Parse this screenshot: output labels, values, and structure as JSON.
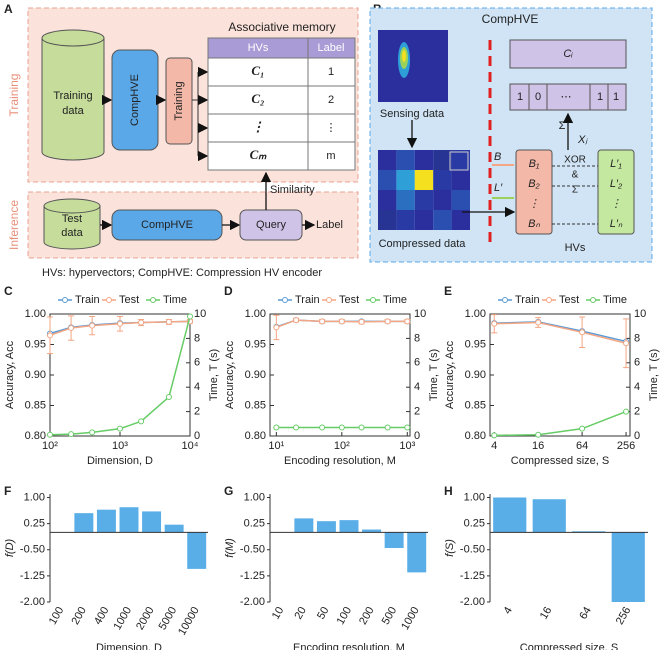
{
  "panel_a": {
    "letter": "A",
    "training_side": "Training",
    "inference_side": "Inference",
    "training_data": [
      "Training",
      "data"
    ],
    "encoder": "CompHVE",
    "trainer": "Training",
    "memory_title": "Associative memory",
    "memory_headers": [
      "HVs",
      "Label"
    ],
    "memory_rows": [
      [
        "C₁",
        "1"
      ],
      [
        "C₂",
        "2"
      ],
      [
        "⋮",
        "⋮"
      ],
      [
        "Cₘ",
        "m"
      ]
    ],
    "similarity": "Similarity",
    "test_data": [
      "Test",
      "data"
    ],
    "test_encoder": "CompHVE",
    "query": "Query",
    "output": "Label",
    "caption": "HVs: hypervectors; CompHVE: Compression HV encoder"
  },
  "panel_b": {
    "letter": "B",
    "title": "CompHVE",
    "sensing": "Sensing data",
    "compressed": "Compressed data",
    "b_label": "B",
    "l_label": "L′",
    "hvs": "HVs",
    "class_hv": "Cᵢ",
    "bits": [
      "1",
      "0",
      "⋯",
      "1",
      "1"
    ],
    "sum": "Σ",
    "x_label": "Xⱼ",
    "ops": [
      "XOR",
      "&",
      "Σ"
    ],
    "b_stack": [
      "B₁",
      "B₂",
      "⋮",
      "Bₙ"
    ],
    "l_stack": [
      "L′₁",
      "L′₂",
      "⋮",
      "L′ₙ"
    ]
  },
  "chart_data": [
    {
      "type": "line",
      "panel": "C",
      "xlabel": "Dimension, D",
      "ylabel": "Accuracy, Acc",
      "y2label": "Time, T (s)",
      "xscale": "log",
      "legend": "top",
      "x": [
        100,
        200,
        400,
        1000,
        2000,
        5000,
        10000
      ],
      "xlim": [
        100,
        10000
      ],
      "xticks": [
        {
          "value": 100,
          "label": "10²"
        },
        {
          "value": 1000,
          "label": "10³"
        },
        {
          "value": 10000,
          "label": "10⁴"
        }
      ],
      "ylim": [
        0.8,
        1.0
      ],
      "yticks": [
        {
          "value": 0.8,
          "label": "0.80"
        },
        {
          "value": 0.85,
          "label": "0.85"
        },
        {
          "value": 0.9,
          "label": "0.90"
        },
        {
          "value": 0.95,
          "label": "0.95"
        },
        {
          "value": 1.0,
          "label": "1.00"
        }
      ],
      "y2lim": [
        0,
        10
      ],
      "y2ticks": [
        0,
        2,
        4,
        6,
        8,
        10
      ],
      "series": [
        {
          "name": "Train",
          "color": "#5b9bd5",
          "values": [
            0.968,
            0.978,
            0.982,
            0.985,
            0.986,
            0.987,
            0.988
          ]
        },
        {
          "name": "Test",
          "color": "#f4a582",
          "values": [
            0.965,
            0.977,
            0.981,
            0.984,
            0.986,
            0.987,
            0.988
          ],
          "errors": [
            0.03,
            0.02,
            0.015,
            0.012,
            0.005,
            0.004,
            0.003
          ]
        },
        {
          "name": "Time",
          "color": "#66cc66",
          "axis": "y2",
          "values": [
            0.1,
            0.15,
            0.3,
            0.6,
            1.2,
            3.2,
            9.8
          ]
        }
      ]
    },
    {
      "type": "line",
      "panel": "D",
      "xlabel": "Encoding resolution, M",
      "ylabel": "Accuracy, Acc",
      "y2label": "Time, T (s)",
      "xscale": "log",
      "legend": "top",
      "x": [
        10,
        20,
        50,
        100,
        200,
        500,
        1000
      ],
      "xlim": [
        8,
        1100
      ],
      "xticks": [
        {
          "value": 10,
          "label": "10¹"
        },
        {
          "value": 100,
          "label": "10²"
        },
        {
          "value": 1000,
          "label": "10³"
        }
      ],
      "ylim": [
        0.8,
        1.0
      ],
      "yticks": [
        {
          "value": 0.8,
          "label": "0.80"
        },
        {
          "value": 0.85,
          "label": "0.85"
        },
        {
          "value": 0.9,
          "label": "0.90"
        },
        {
          "value": 0.95,
          "label": "0.95"
        },
        {
          "value": 1.0,
          "label": "1.00"
        }
      ],
      "y2lim": [
        0,
        10
      ],
      "y2ticks": [
        0,
        2,
        4,
        6,
        8,
        10
      ],
      "series": [
        {
          "name": "Train",
          "color": "#5b9bd5",
          "values": [
            0.979,
            0.99,
            0.988,
            0.988,
            0.988,
            0.988,
            0.988
          ]
        },
        {
          "name": "Test",
          "color": "#f4a582",
          "values": [
            0.978,
            0.99,
            0.988,
            0.988,
            0.987,
            0.988,
            0.988
          ],
          "errors": [
            0.02,
            0.003,
            0.003,
            0.003,
            0.003,
            0.003,
            0.003
          ]
        },
        {
          "name": "Time",
          "color": "#66cc66",
          "axis": "y2",
          "values": [
            0.7,
            0.7,
            0.7,
            0.7,
            0.7,
            0.7,
            0.7
          ]
        }
      ]
    },
    {
      "type": "line",
      "panel": "E",
      "xlabel": "Compressed size, S",
      "ylabel": "Accuracy, Acc",
      "y2label": "Time, T (s)",
      "xscale": "log",
      "legend": "top",
      "x": [
        4,
        16,
        64,
        256
      ],
      "xlim": [
        3.5,
        290
      ],
      "xticks": [
        4,
        16,
        64,
        256
      ],
      "ylim": [
        0.8,
        1.0
      ],
      "yticks": [
        {
          "value": 0.8,
          "label": "0.80"
        },
        {
          "value": 0.85,
          "label": "0.85"
        },
        {
          "value": 0.9,
          "label": "0.90"
        },
        {
          "value": 0.95,
          "label": "0.95"
        },
        {
          "value": 1.0,
          "label": "1.00"
        }
      ],
      "y2lim": [
        0,
        10
      ],
      "y2ticks": [
        0,
        2,
        4,
        6,
        8,
        10
      ],
      "series": [
        {
          "name": "Train",
          "color": "#5b9bd5",
          "values": [
            0.985,
            0.987,
            0.972,
            0.955
          ]
        },
        {
          "name": "Test",
          "color": "#f4a582",
          "values": [
            0.984,
            0.986,
            0.97,
            0.952
          ],
          "errors": [
            0.015,
            0.008,
            0.025,
            0.04
          ]
        },
        {
          "name": "Time",
          "color": "#66cc66",
          "axis": "y2",
          "values": [
            0.05,
            0.1,
            0.6,
            2.0
          ]
        }
      ]
    },
    {
      "type": "bar",
      "panel": "F",
      "xlabel": "Dimension, D",
      "ylabel": "f(D)",
      "color": "#5aaee8",
      "categories": [
        "100",
        "200",
        "400",
        "1000",
        "2000",
        "5000",
        "10000"
      ],
      "values": [
        null,
        0.55,
        0.65,
        0.72,
        0.6,
        0.22,
        -1.05
      ],
      "ylim": [
        -2,
        1.1
      ],
      "yticks": [
        {
          "value": 1,
          "label": "1.00"
        },
        {
          "value": 0.25,
          "label": "0.25"
        },
        {
          "value": -0.5,
          "label": "-0.50"
        },
        {
          "value": -1.25,
          "label": "-1.25"
        },
        {
          "value": -2,
          "label": "-2.00"
        }
      ]
    },
    {
      "type": "bar",
      "panel": "G",
      "xlabel": "Encoding resolution, M",
      "ylabel": "f(M)",
      "color": "#5aaee8",
      "categories": [
        "10",
        "20",
        "50",
        "100",
        "200",
        "500",
        "1000"
      ],
      "values": [
        null,
        0.4,
        0.32,
        0.35,
        0.08,
        -0.45,
        -1.15
      ],
      "ylim": [
        -2,
        1.1
      ],
      "yticks": [
        {
          "value": 1,
          "label": "1.00"
        },
        {
          "value": 0.25,
          "label": "0.25"
        },
        {
          "value": -0.5,
          "label": "-0.50"
        },
        {
          "value": -1.25,
          "label": "-1.25"
        },
        {
          "value": -2,
          "label": "-2.00"
        }
      ]
    },
    {
      "type": "bar",
      "panel": "H",
      "xlabel": "Compressed size, S",
      "ylabel": "f(S)",
      "color": "#5aaee8",
      "categories": [
        "4",
        "16",
        "64",
        "256"
      ],
      "values": [
        1.0,
        0.95,
        0.03,
        -2.0
      ],
      "ylim": [
        -2,
        1.1
      ],
      "yticks": [
        {
          "value": 1,
          "label": "1.00"
        },
        {
          "value": 0.25,
          "label": "0.25"
        },
        {
          "value": -0.5,
          "label": "-0.50"
        },
        {
          "value": -1.25,
          "label": "-1.25"
        },
        {
          "value": -2,
          "label": "-2.00"
        }
      ]
    }
  ]
}
